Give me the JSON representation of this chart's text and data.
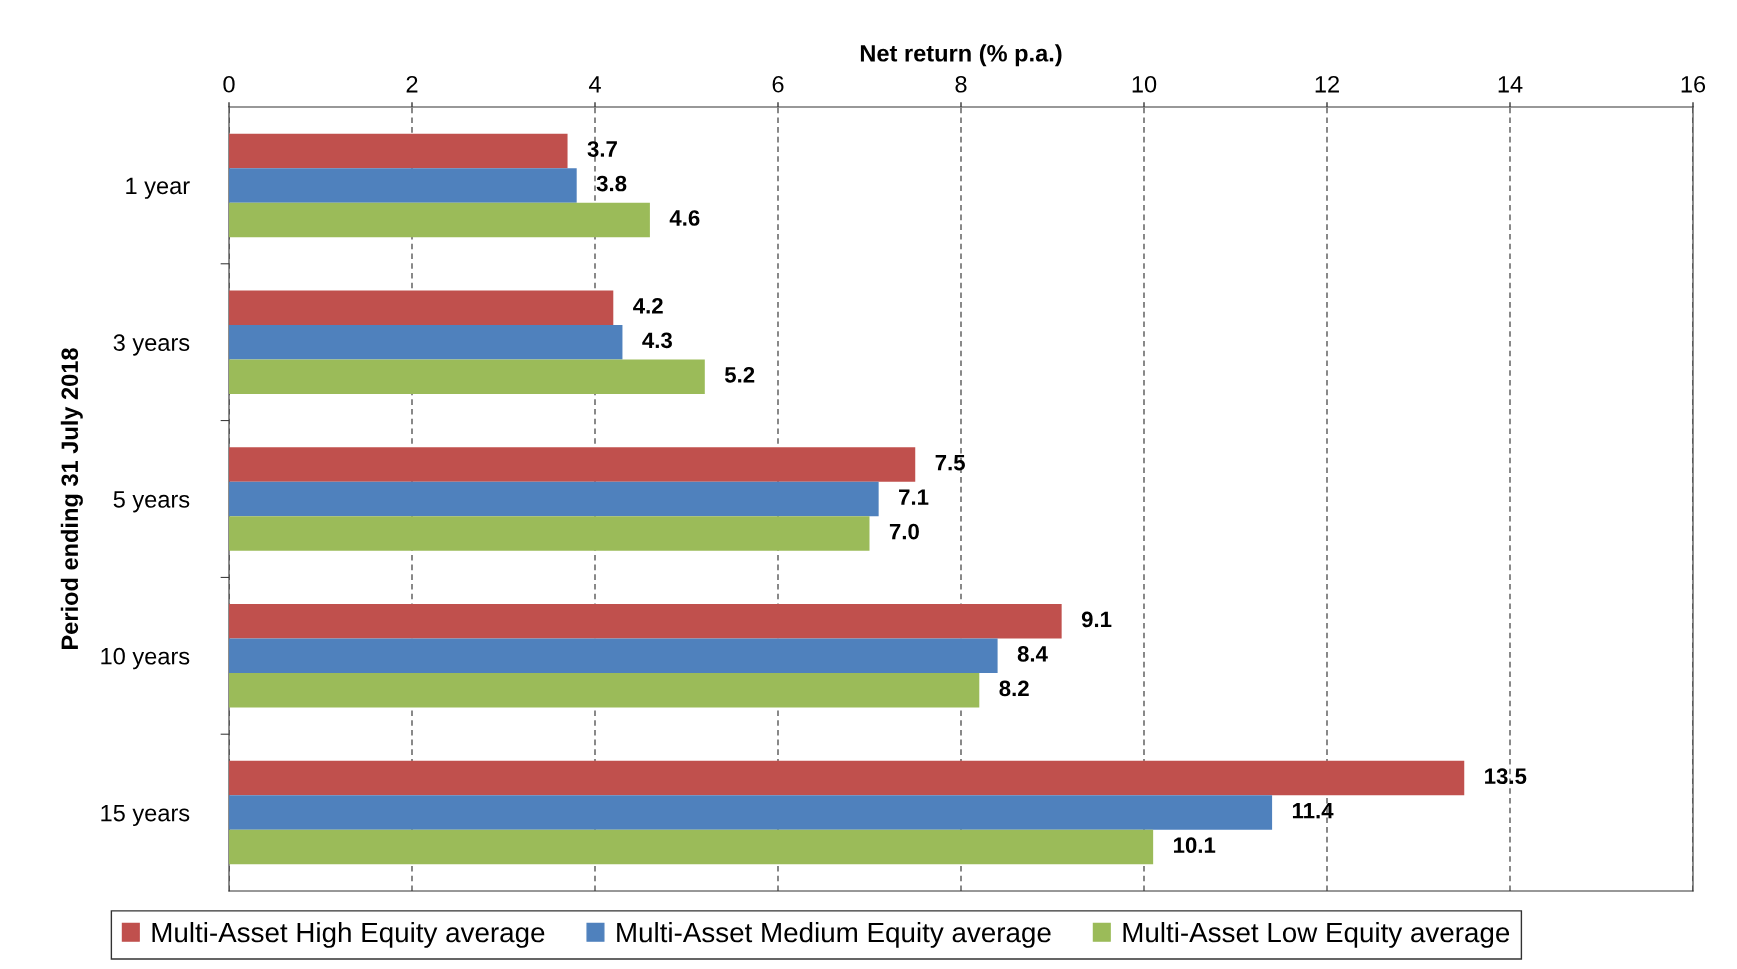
{
  "chart_data": {
    "type": "bar",
    "orientation": "horizontal",
    "xlabel": "Net return (% p.a.)",
    "ylabel": "Period ending 31 July 2018",
    "categories": [
      "1 year",
      "3 years",
      "5 years",
      "10 years",
      "15 years"
    ],
    "xlim": [
      0,
      16
    ],
    "xticks": [
      0,
      2,
      4,
      6,
      8,
      10,
      12,
      14,
      16
    ],
    "grid": "x",
    "legend": "bottom",
    "series": [
      {
        "name": "Multi-Asset High Equity average",
        "color": "#c0504d",
        "values": [
          3.7,
          4.2,
          7.5,
          9.1,
          13.5
        ],
        "value_labels": [
          "3.7",
          "4.2",
          "7.5",
          "9.1",
          "13.5"
        ]
      },
      {
        "name": "Multi-Asset Medium Equity average",
        "color": "#4f81bd",
        "values": [
          3.8,
          4.3,
          7.1,
          8.4,
          11.4
        ],
        "value_labels": [
          "3.8",
          "4.3",
          "7.1",
          "8.4",
          "11.4"
        ]
      },
      {
        "name": "Multi-Asset Low Equity average",
        "color": "#9bbb59",
        "values": [
          4.6,
          5.2,
          7.0,
          8.2,
          10.1
        ],
        "value_labels": [
          "4.6",
          "5.2",
          "7.0",
          "8.2",
          "10.1"
        ]
      }
    ]
  }
}
